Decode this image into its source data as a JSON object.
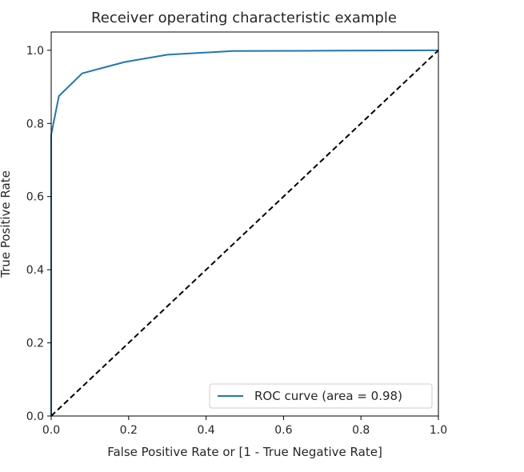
{
  "chart_data": {
    "type": "line",
    "title": "Receiver operating characteristic example",
    "xlabel": "False Positive Rate or [1 - True Negative Rate]",
    "ylabel": "True Positive Rate",
    "xlim": [
      0.0,
      1.0
    ],
    "ylim": [
      0.0,
      1.05
    ],
    "xticks": [
      "0.0",
      "0.2",
      "0.4",
      "0.6",
      "0.8",
      "1.0"
    ],
    "yticks": [
      "0.0",
      "0.2",
      "0.4",
      "0.6",
      "0.8",
      "1.0"
    ],
    "grid": false,
    "legend_position": "lower-right",
    "series": [
      {
        "name": "ROC curve (area = 0.98)",
        "color": "#1f77b4",
        "style": "solid",
        "x": [
          0.0,
          0.0,
          0.02,
          0.08,
          0.19,
          0.3,
          0.47,
          0.75,
          1.0
        ],
        "y": [
          0.0,
          0.77,
          0.875,
          0.937,
          0.968,
          0.988,
          0.998,
          0.999,
          1.0
        ]
      },
      {
        "color": "#000000",
        "style": "dashed",
        "x": [
          0.0,
          1.0
        ],
        "y": [
          0.0,
          1.0
        ]
      }
    ]
  }
}
